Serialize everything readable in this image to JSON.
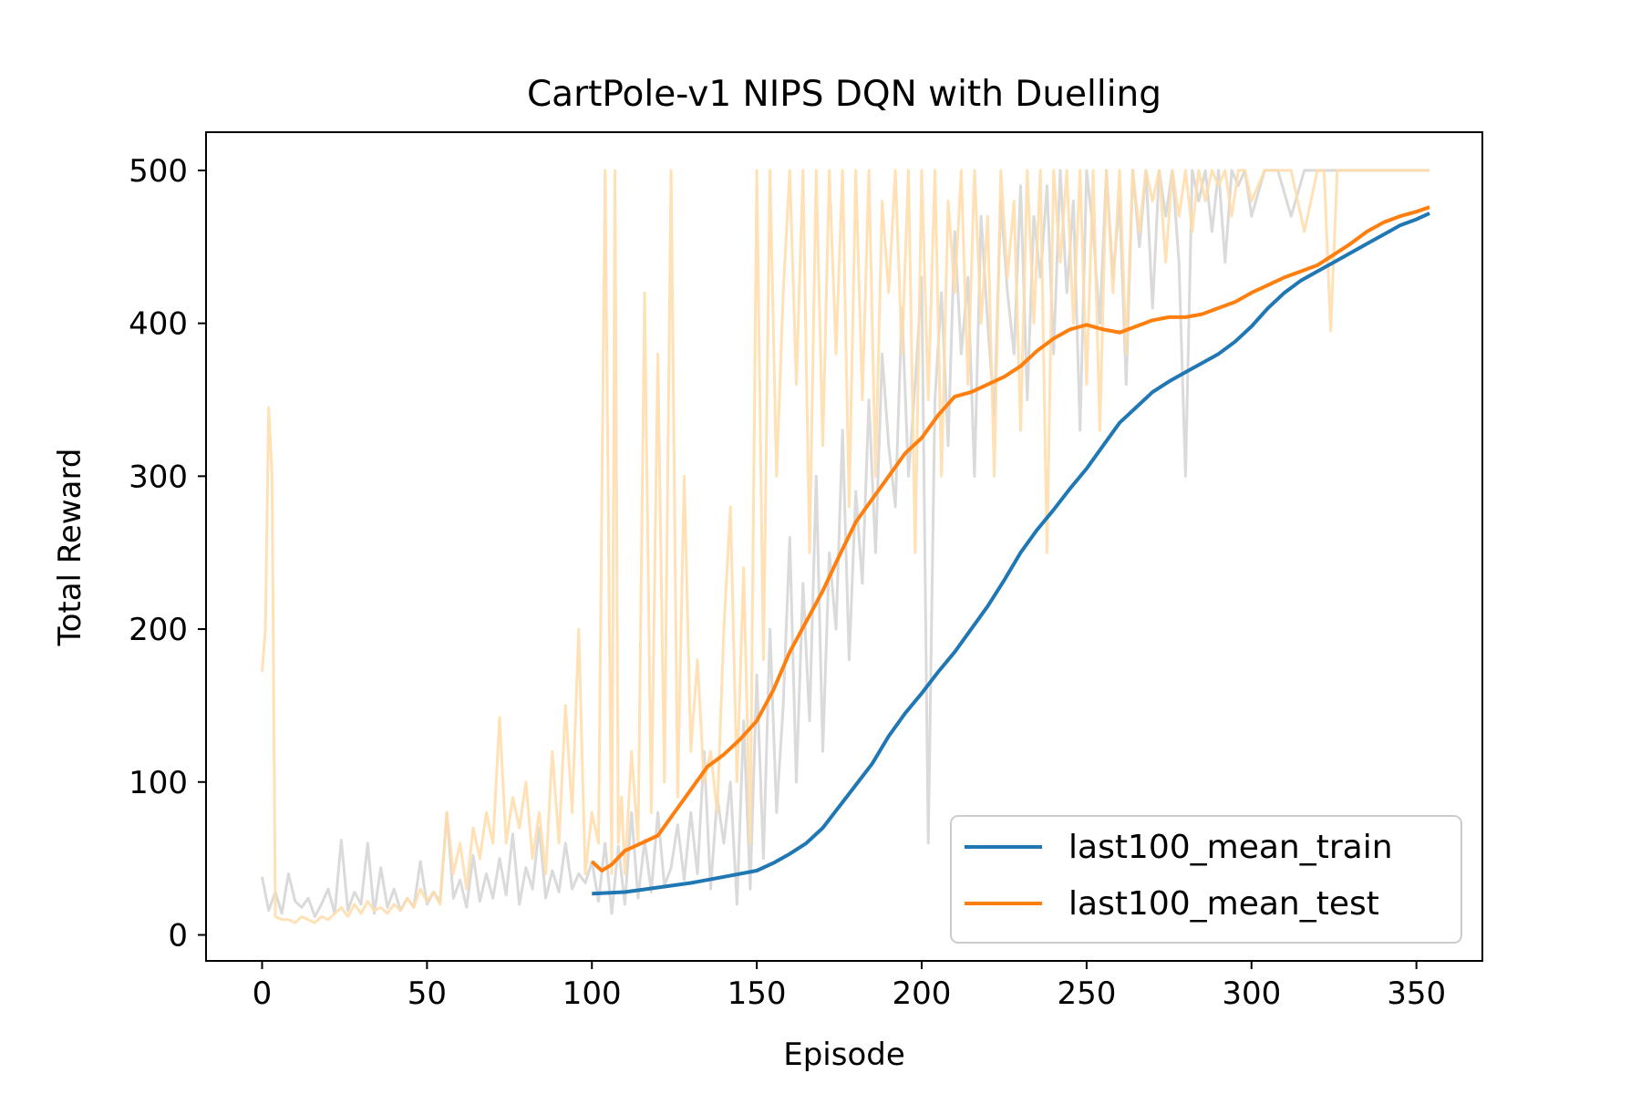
{
  "chart_data": {
    "type": "line",
    "title": "CartPole-v1 NIPS DQN with Duelling",
    "xlabel": "Episode",
    "ylabel": "Total Reward",
    "xlim": [
      -17,
      370
    ],
    "ylim": [
      -17,
      525
    ],
    "xticks": [
      0,
      50,
      100,
      150,
      200,
      250,
      300,
      350
    ],
    "yticks": [
      0,
      100,
      200,
      300,
      400,
      500
    ],
    "grid": false,
    "legend_position": "lower-right",
    "colors": {
      "train_mean": "#1f77b4",
      "test_mean": "#ff7f0e",
      "train_raw": "#d3d3d3",
      "test_raw": "#ffdca8"
    },
    "series": [
      {
        "key": "train_raw",
        "style": "faded",
        "x": [
          0,
          2,
          4,
          6,
          8,
          10,
          12,
          14,
          16,
          18,
          20,
          22,
          24,
          26,
          28,
          30,
          32,
          34,
          36,
          38,
          40,
          42,
          44,
          46,
          48,
          50,
          52,
          54,
          56,
          58,
          60,
          62,
          64,
          66,
          68,
          70,
          72,
          74,
          76,
          78,
          80,
          82,
          84,
          86,
          88,
          90,
          92,
          94,
          96,
          98,
          100,
          102,
          104,
          106,
          108,
          110,
          112,
          114,
          116,
          118,
          120,
          122,
          124,
          126,
          128,
          130,
          132,
          134,
          136,
          138,
          140,
          142,
          144,
          146,
          148,
          150,
          152,
          154,
          156,
          158,
          160,
          162,
          164,
          166,
          168,
          170,
          172,
          174,
          176,
          178,
          180,
          182,
          184,
          186,
          188,
          190,
          192,
          194,
          196,
          198,
          200,
          202,
          204,
          206,
          208,
          210,
          212,
          214,
          216,
          218,
          220,
          222,
          224,
          226,
          228,
          230,
          232,
          234,
          236,
          238,
          240,
          242,
          244,
          246,
          248,
          250,
          252,
          254,
          256,
          258,
          260,
          262,
          264,
          266,
          268,
          270,
          272,
          274,
          276,
          278,
          280,
          282,
          284,
          286,
          288,
          290,
          292,
          294,
          296,
          298,
          300,
          304,
          308,
          312,
          316,
          320,
          324,
          328,
          332,
          336,
          340,
          344,
          348,
          352,
          354
        ],
        "values": [
          38,
          16,
          28,
          14,
          40,
          22,
          18,
          24,
          12,
          20,
          30,
          14,
          62,
          16,
          28,
          20,
          60,
          14,
          44,
          18,
          30,
          16,
          24,
          18,
          48,
          20,
          28,
          22,
          80,
          24,
          36,
          18,
          52,
          22,
          40,
          24,
          50,
          26,
          66,
          20,
          44,
          30,
          70,
          24,
          42,
          28,
          60,
          30,
          40,
          34,
          48,
          22,
          60,
          14,
          58,
          20,
          80,
          24,
          62,
          28,
          80,
          32,
          44,
          72,
          36,
          80,
          40,
          120,
          30,
          90,
          60,
          100,
          20,
          140,
          30,
          170,
          50,
          200,
          80,
          150,
          260,
          100,
          230,
          140,
          300,
          120,
          250,
          200,
          330,
          180,
          290,
          230,
          350,
          250,
          380,
          320,
          280,
          410,
          300,
          360,
          430,
          60,
          350,
          420,
          320,
          460,
          380,
          430,
          300,
          470,
          400,
          340,
          480,
          420,
          380,
          490,
          350,
          470,
          430,
          490,
          380,
          500,
          420,
          480,
          330,
          500,
          460,
          400,
          500,
          430,
          480,
          360,
          500,
          450,
          500,
          410,
          500,
          470,
          500,
          440,
          300,
          500,
          480,
          500,
          460,
          500,
          440,
          500,
          490,
          500,
          470,
          500,
          500,
          470,
          500,
          500,
          500,
          500,
          500,
          500,
          500,
          500,
          500,
          500,
          500
        ]
      },
      {
        "key": "test_raw",
        "style": "faded",
        "x": [
          0,
          1,
          2,
          3,
          4,
          6,
          8,
          10,
          12,
          14,
          16,
          18,
          20,
          22,
          24,
          26,
          28,
          30,
          32,
          34,
          36,
          38,
          40,
          42,
          44,
          46,
          48,
          50,
          52,
          54,
          56,
          58,
          60,
          62,
          64,
          66,
          68,
          70,
          72,
          74,
          76,
          78,
          80,
          82,
          84,
          86,
          88,
          90,
          92,
          94,
          96,
          98,
          100,
          102,
          104,
          106,
          107,
          108,
          109,
          110,
          112,
          114,
          116,
          118,
          120,
          122,
          124,
          126,
          128,
          130,
          132,
          134,
          136,
          138,
          140,
          142,
          144,
          146,
          148,
          150,
          152,
          154,
          156,
          158,
          160,
          162,
          164,
          166,
          168,
          170,
          172,
          174,
          176,
          178,
          180,
          182,
          184,
          186,
          188,
          190,
          192,
          194,
          196,
          198,
          200,
          202,
          204,
          206,
          208,
          210,
          212,
          214,
          216,
          218,
          220,
          222,
          224,
          226,
          228,
          230,
          232,
          234,
          236,
          238,
          240,
          242,
          244,
          246,
          248,
          250,
          252,
          254,
          256,
          258,
          260,
          262,
          264,
          266,
          268,
          270,
          272,
          274,
          276,
          278,
          280,
          282,
          284,
          286,
          288,
          290,
          292,
          294,
          296,
          298,
          300,
          304,
          308,
          312,
          316,
          320,
          322,
          324,
          326,
          330,
          336,
          340,
          344,
          348,
          352,
          354
        ],
        "values": [
          172,
          200,
          345,
          300,
          12,
          10,
          10,
          8,
          12,
          10,
          8,
          12,
          10,
          14,
          18,
          12,
          20,
          14,
          22,
          16,
          18,
          14,
          20,
          16,
          24,
          18,
          30,
          22,
          28,
          20,
          80,
          40,
          60,
          30,
          70,
          50,
          80,
          60,
          142,
          60,
          90,
          70,
          100,
          50,
          80,
          40,
          120,
          60,
          150,
          80,
          200,
          40,
          80,
          60,
          500,
          40,
          500,
          60,
          90,
          40,
          120,
          60,
          420,
          80,
          380,
          100,
          500,
          90,
          300,
          120,
          180,
          100,
          120,
          80,
          200,
          280,
          100,
          240,
          60,
          500,
          180,
          500,
          300,
          420,
          500,
          360,
          500,
          250,
          500,
          320,
          500,
          380,
          500,
          280,
          500,
          350,
          500,
          300,
          480,
          420,
          500,
          380,
          500,
          250,
          500,
          350,
          500,
          300,
          480,
          420,
          500,
          360,
          500,
          400,
          470,
          300,
          500,
          430,
          480,
          330,
          500,
          400,
          500,
          250,
          500,
          440,
          500,
          400,
          500,
          360,
          500,
          330,
          500,
          420,
          500,
          380,
          500,
          460,
          500,
          480,
          500,
          440,
          500,
          470,
          500,
          460,
          500,
          480,
          500,
          490,
          500,
          470,
          500,
          500,
          480,
          500,
          500,
          500,
          460,
          500,
          500,
          395,
          500,
          500,
          500,
          500,
          500,
          500,
          500,
          500
        ]
      },
      {
        "key": "train_mean",
        "name": "last100_mean_train",
        "style": "solid",
        "x": [
          100,
          110,
          120,
          130,
          140,
          150,
          155,
          160,
          165,
          170,
          175,
          180,
          185,
          190,
          195,
          200,
          205,
          210,
          215,
          220,
          225,
          230,
          235,
          240,
          245,
          250,
          255,
          260,
          265,
          270,
          275,
          280,
          285,
          290,
          295,
          300,
          305,
          310,
          315,
          320,
          325,
          330,
          335,
          340,
          345,
          350,
          354
        ],
        "values": [
          27,
          28,
          31,
          34,
          38,
          42,
          47,
          53,
          60,
          70,
          84,
          98,
          112,
          130,
          145,
          158,
          172,
          185,
          200,
          215,
          232,
          250,
          265,
          278,
          292,
          305,
          320,
          335,
          345,
          355,
          362,
          368,
          374,
          380,
          388,
          398,
          410,
          420,
          428,
          434,
          440,
          446,
          452,
          458,
          464,
          468,
          472
        ]
      },
      {
        "key": "test_mean",
        "name": "last100_mean_test",
        "style": "solid",
        "x": [
          100,
          103,
          106,
          110,
          115,
          120,
          125,
          130,
          135,
          140,
          145,
          150,
          155,
          160,
          165,
          170,
          175,
          180,
          185,
          190,
          195,
          200,
          205,
          210,
          215,
          220,
          225,
          230,
          235,
          240,
          245,
          250,
          255,
          260,
          265,
          270,
          275,
          280,
          285,
          290,
          295,
          300,
          305,
          310,
          315,
          320,
          325,
          330,
          335,
          340,
          345,
          350,
          354
        ],
        "values": [
          48,
          42,
          46,
          55,
          60,
          65,
          80,
          95,
          110,
          118,
          128,
          140,
          160,
          185,
          205,
          225,
          248,
          270,
          285,
          300,
          315,
          325,
          340,
          352,
          355,
          360,
          365,
          372,
          382,
          390,
          396,
          399,
          396,
          394,
          398,
          402,
          404,
          404,
          406,
          410,
          414,
          420,
          425,
          430,
          434,
          438,
          445,
          452,
          460,
          466,
          470,
          473,
          476
        ]
      }
    ]
  }
}
